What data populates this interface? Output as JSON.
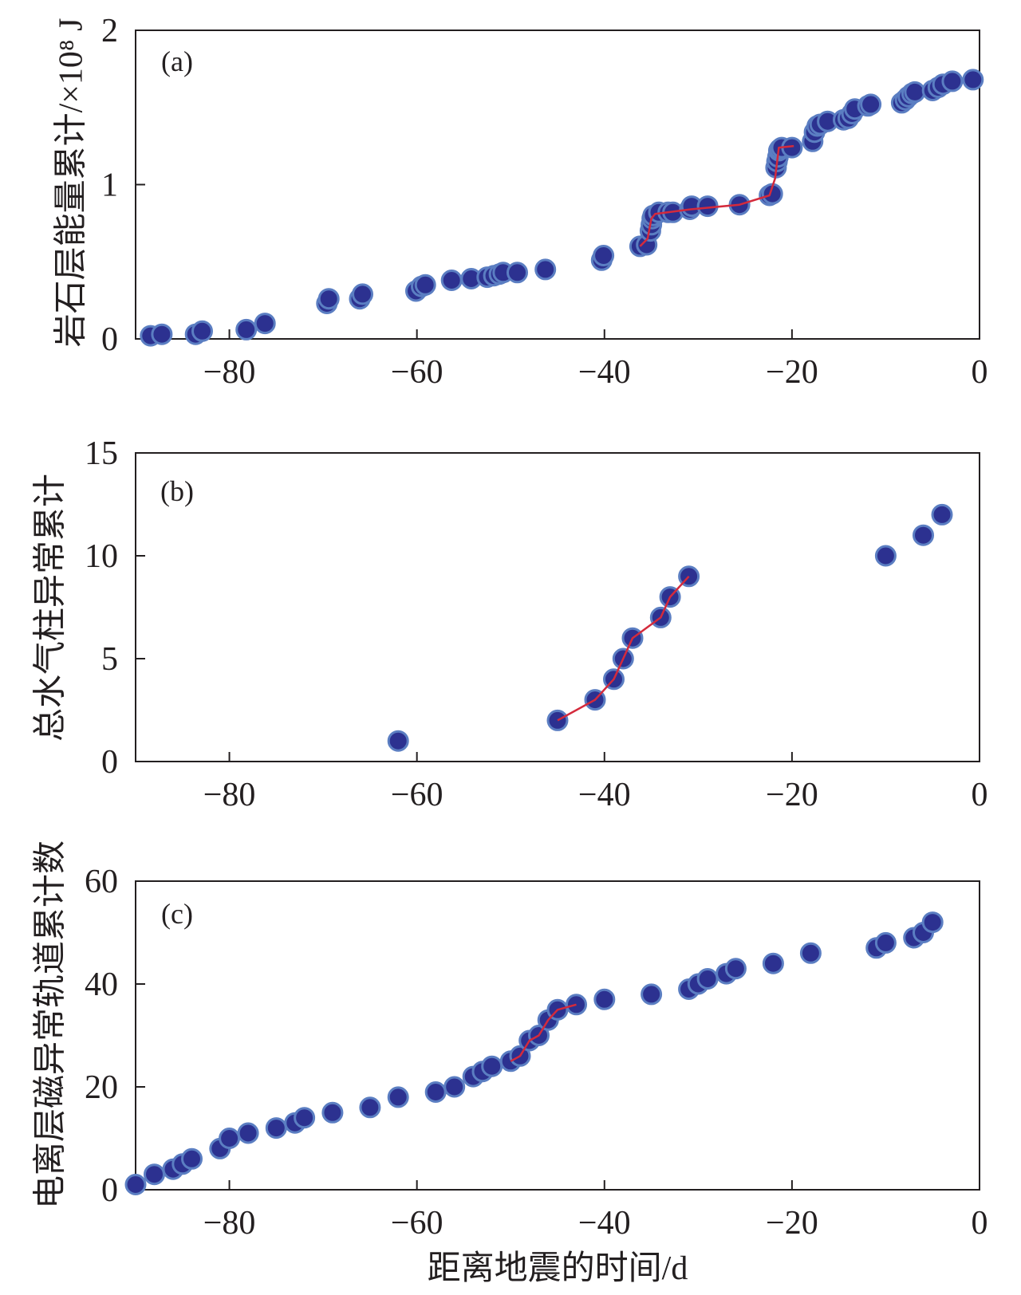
{
  "colors": {
    "marker_fill": "#2c3190",
    "marker_edge": "#5b7ec2",
    "trend_line": "#d42a3c",
    "axis": "#231f20"
  },
  "chart_data": [
    {
      "type": "scatter",
      "panel_label": "(a)",
      "ylabel": "岩石层能量累计/×10⁸ J",
      "xlim": [
        -90,
        0
      ],
      "ylim": [
        0,
        2
      ],
      "xticks": [
        -80,
        -60,
        -40,
        -20,
        0
      ],
      "xtick_labels": [
        "−80",
        "−60",
        "−40",
        "−20",
        "0"
      ],
      "yticks": [
        0,
        1,
        2
      ],
      "ytick_labels": [
        "0",
        "1",
        "2"
      ],
      "grid": false,
      "series": [
        {
          "type": "scatter",
          "x": [
            -88.4,
            -87.2,
            -83.6,
            -82.9,
            -78.2,
            -76.2,
            -69.6,
            -69.4,
            -66.1,
            -65.8,
            -60.1,
            -59.5,
            -59.1,
            -56.3,
            -54.2,
            -52.5,
            -51.8,
            -51.2,
            -50.8,
            -49.3,
            -46.3,
            -40.3,
            -40.1,
            -36.2,
            -35.5,
            -35.1,
            -35.0,
            -34.9,
            -34.8,
            -34.2,
            -33.2,
            -32.7,
            -30.9,
            -30.7,
            -29.0,
            -25.6,
            -22.4,
            -22.1,
            -21.7,
            -21.6,
            -21.5,
            -21.4,
            -21.3,
            -21.1,
            -20.0,
            -17.8,
            -17.6,
            -17.3,
            -17.0,
            -16.2,
            -14.5,
            -14.0,
            -13.6,
            -13.3,
            -11.9,
            -11.6,
            -8.3,
            -7.9,
            -7.6,
            -7.2,
            -6.9,
            -5.0,
            -4.4,
            -3.9,
            -2.9,
            -0.7
          ],
          "y": [
            0.02,
            0.03,
            0.03,
            0.05,
            0.06,
            0.1,
            0.23,
            0.26,
            0.26,
            0.29,
            0.31,
            0.34,
            0.35,
            0.38,
            0.39,
            0.4,
            0.41,
            0.42,
            0.43,
            0.43,
            0.45,
            0.51,
            0.54,
            0.6,
            0.61,
            0.7,
            0.74,
            0.78,
            0.8,
            0.82,
            0.82,
            0.82,
            0.84,
            0.86,
            0.86,
            0.87,
            0.93,
            0.94,
            1.11,
            1.15,
            1.18,
            1.22,
            1.23,
            1.24,
            1.24,
            1.28,
            1.34,
            1.38,
            1.39,
            1.41,
            1.42,
            1.43,
            1.46,
            1.49,
            1.51,
            1.52,
            1.53,
            1.55,
            1.57,
            1.59,
            1.6,
            1.61,
            1.63,
            1.65,
            1.67,
            1.68
          ]
        },
        {
          "type": "line",
          "x": [
            -36.2,
            -35.4,
            -35.0,
            -34.6,
            -30.8,
            -25.6,
            -22.4,
            -21.8,
            -21.4,
            -19.8
          ],
          "y": [
            0.6,
            0.65,
            0.78,
            0.81,
            0.84,
            0.87,
            0.93,
            1.04,
            1.24,
            1.25
          ]
        }
      ]
    },
    {
      "type": "scatter",
      "panel_label": "(b)",
      "ylabel": "总水气柱异常累计",
      "xlim": [
        -90,
        0
      ],
      "ylim": [
        0,
        15
      ],
      "xticks": [
        -80,
        -60,
        -40,
        -20,
        0
      ],
      "xtick_labels": [
        "−80",
        "−60",
        "−40",
        "−20",
        "0"
      ],
      "yticks": [
        0,
        5,
        10,
        15
      ],
      "ytick_labels": [
        "0",
        "5",
        "10",
        "15"
      ],
      "grid": false,
      "series": [
        {
          "type": "scatter",
          "x": [
            -62,
            -45,
            -41,
            -39,
            -38,
            -37,
            -34,
            -33,
            -31,
            -10,
            -6,
            -4
          ],
          "y": [
            1,
            2,
            3,
            4,
            5,
            6,
            7,
            8,
            9,
            10,
            11,
            12
          ]
        },
        {
          "type": "line",
          "x": [
            -45,
            -41,
            -39,
            -38,
            -37,
            -34,
            -33,
            -31
          ],
          "y": [
            2,
            3,
            4,
            5,
            6,
            7,
            8,
            9
          ]
        }
      ]
    },
    {
      "type": "scatter",
      "panel_label": "(c)",
      "xlabel": "距离地震的时间/d",
      "ylabel": "电离层磁异常轨道累计数",
      "xlim": [
        -90,
        0
      ],
      "ylim": [
        0,
        60
      ],
      "xticks": [
        -80,
        -60,
        -40,
        -20,
        0
      ],
      "xtick_labels": [
        "−80",
        "−60",
        "−40",
        "−20",
        "0"
      ],
      "yticks": [
        0,
        20,
        40,
        60
      ],
      "ytick_labels": [
        "0",
        "20",
        "40",
        "60"
      ],
      "grid": false,
      "series": [
        {
          "type": "scatter",
          "x": [
            -90,
            -88,
            -86,
            -85,
            -84,
            -81,
            -80,
            -78,
            -75,
            -73,
            -72,
            -69,
            -65,
            -62,
            -58,
            -56,
            -54,
            -53,
            -52,
            -50,
            -49,
            -48,
            -47,
            -46,
            -45,
            -43,
            -40,
            -35,
            -31,
            -30,
            -29,
            -27,
            -26,
            -22,
            -18,
            -11,
            -10,
            -7,
            -6,
            -5
          ],
          "y": [
            1,
            3,
            4,
            5,
            6,
            8,
            10,
            11,
            12,
            13,
            14,
            15,
            16,
            18,
            19,
            20,
            22,
            23,
            24,
            25,
            26,
            29,
            30,
            33,
            35,
            36,
            37,
            38,
            39,
            40,
            41,
            42,
            43,
            44,
            46,
            47,
            48,
            49,
            50,
            52
          ]
        },
        {
          "type": "line",
          "x": [
            -50,
            -49,
            -48,
            -47,
            -46,
            -45,
            -43
          ],
          "y": [
            25,
            26,
            29,
            30,
            33,
            35,
            36
          ]
        }
      ]
    }
  ]
}
